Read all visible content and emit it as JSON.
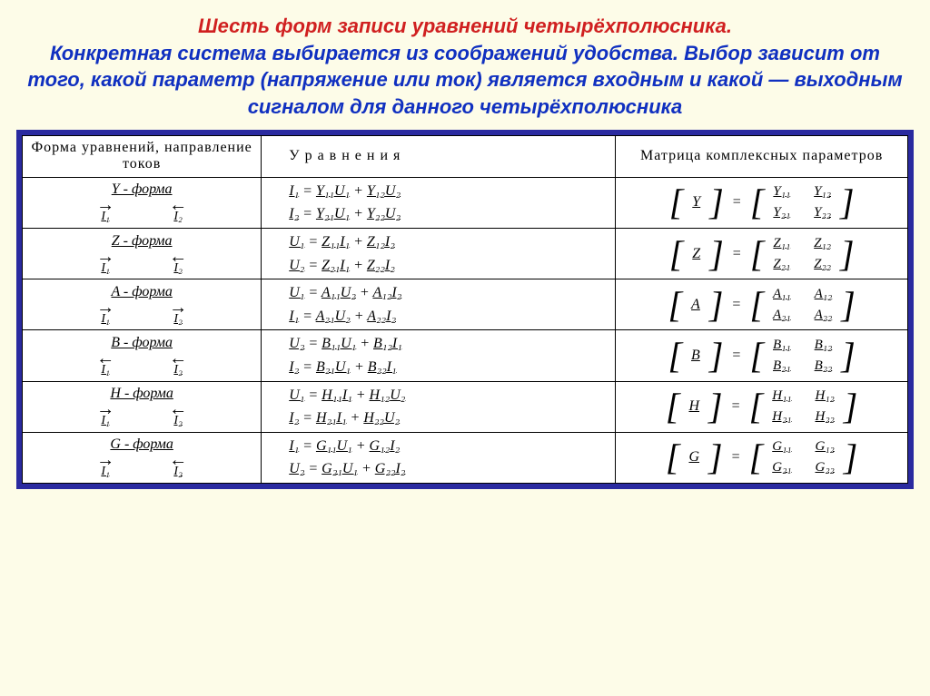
{
  "background_color": "#fdfce8",
  "title": {
    "line_red": "Шесть форм записи уравнений четырёхполюсника.",
    "line_blue": "Конкретная система выбирается из соображений удобства. Выбор зависит от того, какой параметр (напряжение или ток) является входным и какой — выходным сигналом для данного четырёхполюсника",
    "red_color": "#d02020",
    "blue_color": "#1030c0",
    "font_style": "bold italic",
    "font_size": 22
  },
  "table": {
    "border_color": "#2a2aa0",
    "border_width": 6,
    "headers": {
      "col1": "Форма уравнений, направление токов",
      "col2": "У р а в н е н и я",
      "col3": "Матрица комплексных параметров"
    },
    "rows": [
      {
        "form": "Y - форма",
        "i1_dir": "right",
        "i2_dir": "left",
        "eq1": {
          "lhs": "I₁",
          "r1c": "Y₁₁",
          "r1v": "U₁",
          "r2c": "Y₁₂",
          "r2v": "U₂"
        },
        "eq2": {
          "lhs": "I₂",
          "r1c": "Y₂₁",
          "r1v": "U₁",
          "r2c": "Y₂₂",
          "r2v": "U₂"
        },
        "msym": "Y",
        "m": [
          "Y₁₁",
          "Y₁₂",
          "Y₂₁",
          "Y₂₂"
        ]
      },
      {
        "form": "Z - форма",
        "i1_dir": "right",
        "i2_dir": "left",
        "eq1": {
          "lhs": "U₁",
          "r1c": "Z₁₁",
          "r1v": "I₁",
          "r2c": "Z₁₂",
          "r2v": "I₂"
        },
        "eq2": {
          "lhs": "U₂",
          "r1c": "Z₂₁",
          "r1v": "I₁",
          "r2c": "Z₂₂",
          "r2v": "I₂"
        },
        "msym": "Z",
        "m": [
          "Z₁₁",
          "Z₁₂",
          "Z₂₁",
          "Z₂₂"
        ]
      },
      {
        "form": "A - форма",
        "i1_dir": "right",
        "i2_dir": "right",
        "eq1": {
          "lhs": "U₁",
          "r1c": "A₁₁",
          "r1v": "U₂",
          "r2c": "A₁₂",
          "r2v": "I₂"
        },
        "eq2": {
          "lhs": "I₁",
          "r1c": "A₂₁",
          "r1v": "U₂",
          "r2c": "A₂₂",
          "r2v": "I₂"
        },
        "msym": "A",
        "m": [
          "A₁₁",
          "A₁₂",
          "A₂₁",
          "A₂₂"
        ]
      },
      {
        "form": "B - форма",
        "i1_dir": "left",
        "i2_dir": "left",
        "eq1": {
          "lhs": "U₂",
          "r1c": "B₁₁",
          "r1v": "U₁",
          "r2c": "B₁₂",
          "r2v": "I₁"
        },
        "eq2": {
          "lhs": "I₂",
          "r1c": "B₂₁",
          "r1v": "U₁",
          "r2c": "B₂₂",
          "r2v": "I₁"
        },
        "msym": "B",
        "m": [
          "B₁₁",
          "B₁₂",
          "B₂₁",
          "B₂₂"
        ]
      },
      {
        "form": "H - форма",
        "i1_dir": "right",
        "i2_dir": "left",
        "eq1": {
          "lhs": "U₁",
          "r1c": "H₁₁",
          "r1v": "I₁",
          "r2c": "H₁₂",
          "r2v": "U₂"
        },
        "eq2": {
          "lhs": "I₂",
          "r1c": "H₂₁",
          "r1v": "I₁",
          "r2c": "H₂₂",
          "r2v": "U₂"
        },
        "msym": "H",
        "m": [
          "H₁₁",
          "H₁₂",
          "H₂₁",
          "H₂₂"
        ]
      },
      {
        "form": "G - форма",
        "i1_dir": "right",
        "i2_dir": "left",
        "eq1": {
          "lhs": "I₁",
          "r1c": "G₁₁",
          "r1v": "U₁",
          "r2c": "G₁₂",
          "r2v": "I₂"
        },
        "eq2": {
          "lhs": "U₂",
          "r1c": "G₂₁",
          "r1v": "U₁",
          "r2c": "G₂₂",
          "r2v": "I₂"
        },
        "msym": "G",
        "m": [
          "G₁₁",
          "G₁₂",
          "G₂₁",
          "G₂₂"
        ]
      }
    ]
  },
  "labels": {
    "i1": "I₁",
    "i2": "I₂"
  }
}
